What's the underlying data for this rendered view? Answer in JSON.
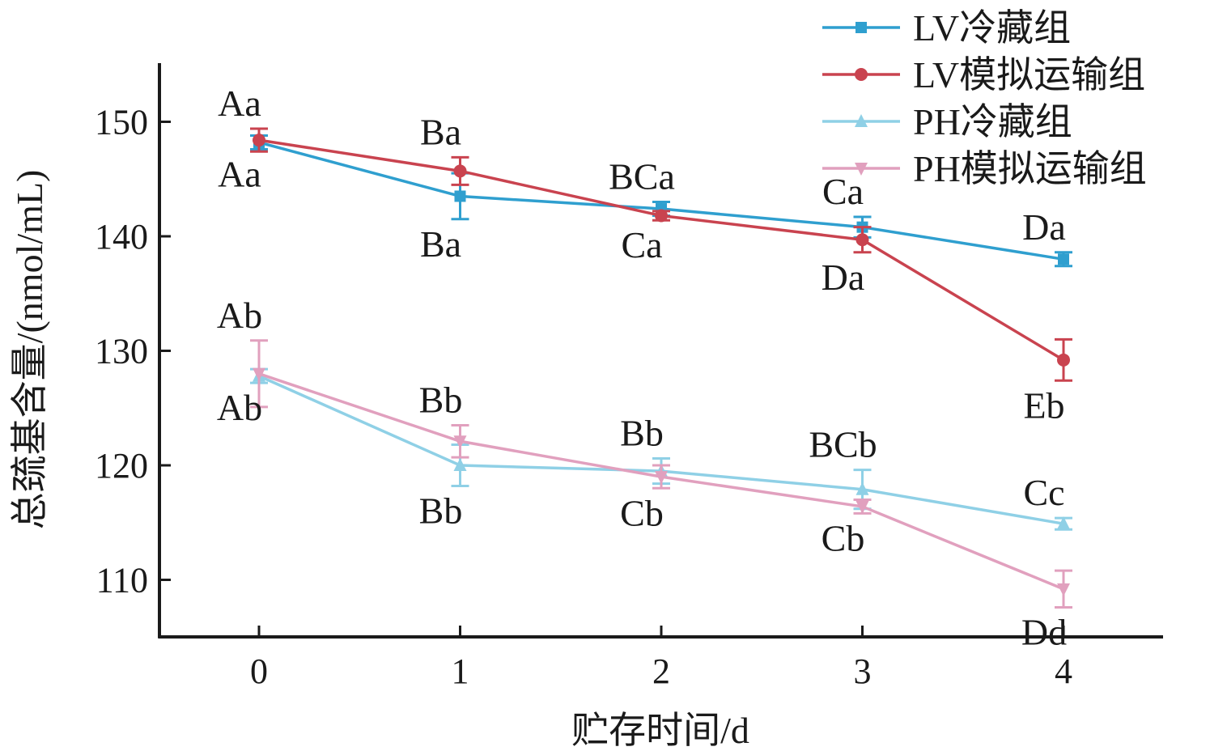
{
  "chart_data": {
    "type": "line",
    "title": "",
    "xlabel": "贮存时间/d",
    "ylabel": "总巯基含量/(nmol/mL)",
    "x": [
      0,
      1,
      2,
      3,
      4
    ],
    "xticks": [
      "0",
      "1",
      "2",
      "3",
      "4"
    ],
    "yticks": [
      110,
      120,
      130,
      140,
      150
    ],
    "xlim": [
      -0.5,
      4.5
    ],
    "ylim": [
      105,
      155
    ],
    "grid": false,
    "legend_position": "top-right",
    "series": [
      {
        "name": "LV冷藏组",
        "color": "#2f9fcf",
        "marker": "square",
        "values": [
          148.2,
          143.5,
          142.4,
          140.8,
          138.0
        ],
        "errors": [
          0.6,
          2.0,
          0.6,
          0.9,
          0.6
        ],
        "labels": [
          "Aa",
          "Ba",
          "BCa",
          "Ca",
          "Da"
        ],
        "label_side": [
          "below",
          "below",
          "above",
          "above",
          "above"
        ]
      },
      {
        "name": "LV模拟运输组",
        "color": "#c9434f",
        "marker": "circle",
        "values": [
          148.4,
          145.7,
          141.8,
          139.7,
          129.2
        ],
        "errors": [
          1.0,
          1.2,
          0.4,
          1.1,
          1.8
        ],
        "labels": [
          "Aa",
          "Ba",
          "Ca",
          "Da",
          "Eb"
        ],
        "label_side": [
          "above",
          "above",
          "below",
          "below",
          "below"
        ]
      },
      {
        "name": "PH冷藏组",
        "color": "#8fd0e6",
        "marker": "triangle-up",
        "values": [
          127.8,
          120.0,
          119.5,
          117.9,
          114.9
        ],
        "errors": [
          0.6,
          1.8,
          1.1,
          1.7,
          0.5
        ],
        "labels": [
          "Ab",
          "Bb",
          "Bb",
          "BCb",
          "Cc"
        ],
        "label_side": [
          "below",
          "below",
          "above",
          "above",
          "above"
        ]
      },
      {
        "name": "PH模拟运输组",
        "color": "#e1a0be",
        "marker": "triangle-down",
        "values": [
          128.0,
          122.1,
          119.0,
          116.4,
          109.2
        ],
        "errors": [
          2.9,
          1.4,
          1.0,
          0.6,
          1.6
        ],
        "labels": [
          "Ab",
          "Bb",
          "Cb",
          "Cb",
          "Dd"
        ],
        "label_side": [
          "above",
          "above",
          "below",
          "below",
          "below"
        ]
      }
    ]
  }
}
